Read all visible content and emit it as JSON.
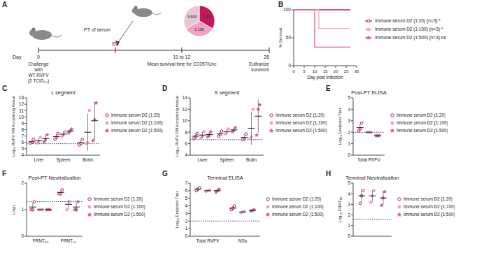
{
  "schematic": {
    "panel_label": "A",
    "pie_labels": [
      "1:20",
      "1:100",
      "1:500"
    ],
    "treatment": "PT of serum",
    "treatment_day": "D2",
    "timeline_label": "Day",
    "timeline_ticks": [
      "0",
      "11 to 12",
      "28"
    ],
    "events": [
      [
        "Challenge",
        "with",
        "WT RVFV",
        "(2 TCID₅₀)"
      ],
      [
        "Mean survival time for CC057/Unc"
      ],
      [
        "Euthanize",
        "survivors"
      ]
    ]
  },
  "chart_data": [
    {
      "type": "line",
      "panel_label": "B",
      "x_label": "Day post infection",
      "y_label": "% Survival",
      "xlim": [
        0,
        30
      ],
      "xticks": [
        0,
        5,
        10,
        15,
        20,
        25,
        30
      ],
      "ylim": [
        0,
        100
      ],
      "yticks": [
        0,
        50,
        100
      ],
      "series": [
        {
          "name": "Immune serum D2 (1:20) (n=3) *",
          "color": "#c2185b",
          "marker": "open-circle",
          "x": [
            0,
            27
          ],
          "values": [
            100,
            100
          ]
        },
        {
          "name": "Immune serum D2 (1:100) (n=3) *",
          "color": "#f3a3c3",
          "marker": "circle",
          "x": [
            0,
            12,
            12,
            27
          ],
          "values": [
            100,
            100,
            66.7,
            66.7
          ]
        },
        {
          "name": "Immune serum D2 (1:500) (n=3) ns",
          "color": "#de5b95",
          "marker": "star",
          "x": [
            0,
            10,
            10,
            27
          ],
          "values": [
            100,
            100,
            33.3,
            33.3
          ]
        }
      ]
    },
    {
      "type": "dot",
      "panel_label": "C",
      "title": "L segment",
      "y_label": "Log₁₀ RVFV RNA copies/g tissue",
      "ylim": [
        4,
        13
      ],
      "yticks": [
        4,
        5,
        6,
        7,
        8,
        9,
        10,
        11,
        12,
        13
      ],
      "limit_of_detection": 5.8,
      "categories": [
        "Liver",
        "Spleen",
        "Brain"
      ],
      "series": [
        {
          "name": "Immune serum D2 (1:20)",
          "color": "#c2185b",
          "marker": "open-circle",
          "values": [
            6.1,
            6.9,
            6.0
          ],
          "errors": [
            0.3,
            0.45,
            0.45
          ],
          "points": [
            [
              5.9,
              6.0,
              6.5
            ],
            [
              6.5,
              6.8,
              7.4
            ],
            [
              5.6,
              5.8,
              6.5
            ]
          ]
        },
        {
          "name": "Immune serum D2 (1:100)",
          "color": "#f3a3c3",
          "marker": "circle",
          "values": [
            6.3,
            7.3,
            7.6
          ],
          "errors": [
            0.45,
            0.4,
            2.9
          ],
          "points": [
            [
              5.9,
              6.2,
              6.8
            ],
            [
              6.9,
              7.2,
              7.7
            ],
            [
              5.8,
              6.0,
              11.0
            ]
          ]
        },
        {
          "name": "Immune serum D2 (1:500)",
          "color": "#de5b95",
          "marker": "star",
          "values": [
            6.6,
            7.8,
            9.4
          ],
          "errors": [
            0.55,
            0.3,
            3.0
          ],
          "points": [
            [
              6.1,
              6.5,
              7.2
            ],
            [
              7.5,
              7.8,
              8.1
            ],
            [
              6.3,
              9.6,
              12.2
            ]
          ]
        }
      ]
    },
    {
      "type": "dot",
      "panel_label": "D",
      "title": "S segment",
      "y_label": "Log₁₀ RVFV RNA copies/g tissue",
      "ylim": [
        4,
        14
      ],
      "yticks": [
        4,
        6,
        8,
        10,
        12,
        14
      ],
      "limit_of_detection": 6.7,
      "categories": [
        "Liver",
        "Spleen",
        "Brain"
      ],
      "series": [
        {
          "name": "Immune serum D2 (1:20)",
          "color": "#c2185b",
          "marker": "open-circle",
          "values": [
            7.3,
            7.7,
            7.1
          ],
          "errors": [
            0.45,
            0.45,
            0.5
          ],
          "points": [
            [
              6.9,
              7.2,
              7.8
            ],
            [
              7.3,
              7.6,
              8.2
            ],
            [
              6.7,
              6.9,
              7.7
            ]
          ]
        },
        {
          "name": "Immune serum D2 (1:100)",
          "color": "#f3a3c3",
          "marker": "circle",
          "values": [
            7.5,
            8.1,
            8.7
          ],
          "errors": [
            0.55,
            0.45,
            2.9
          ],
          "points": [
            [
              7.0,
              7.4,
              8.1
            ],
            [
              7.7,
              8.0,
              8.6
            ],
            [
              6.8,
              7.2,
              12.0
            ]
          ]
        },
        {
          "name": "Immune serum D2 (1:500)",
          "color": "#de5b95",
          "marker": "star",
          "values": [
            7.6,
            8.4,
            10.8
          ],
          "errors": [
            0.45,
            0.35,
            2.9
          ],
          "points": [
            [
              7.2,
              7.5,
              8.1
            ],
            [
              8.1,
              8.3,
              8.8
            ],
            [
              7.5,
              12.0,
              12.8
            ]
          ]
        }
      ]
    },
    {
      "type": "dot",
      "panel_label": "E",
      "title": "Post-PT ELISA",
      "y_label": "Log₁₀ Endpoint Titer",
      "ylim": [
        0,
        5
      ],
      "yticks": [
        0,
        1,
        2,
        3,
        4,
        5
      ],
      "limit_of_detection": 2,
      "categories": [
        "Total RVFV"
      ],
      "series": [
        {
          "name": "Immune serum D2 (1:20)",
          "color": "#c2185b",
          "marker": "open-circle",
          "values": [
            2.4
          ],
          "errors": [
            0.35
          ],
          "points": [
            [
              2.1,
              2.3,
              2.8
            ]
          ]
        },
        {
          "name": "Immune serum D2 (1:100)",
          "color": "#f3a3c3",
          "marker": "circle",
          "values": [
            2.0
          ],
          "errors": [
            0
          ],
          "points": [
            [
              2.0,
              2.0,
              2.0
            ]
          ]
        },
        {
          "name": "Immune serum D2 (1:500)",
          "color": "#de5b95",
          "marker": "star",
          "values": [
            1.7
          ],
          "errors": [
            0
          ],
          "points": [
            [
              1.7,
              1.7,
              1.7
            ]
          ]
        }
      ]
    },
    {
      "type": "dot",
      "panel_label": "F",
      "title": "Post-PT Neutralization",
      "y_label": "Log₁₀",
      "ylim": [
        0,
        2
      ],
      "yticks": [
        0,
        1,
        2
      ],
      "limit_of_detection": 1.3,
      "categories": [
        "FRNT₈₀",
        "FRNT₅₀"
      ],
      "series": [
        {
          "name": "Immune serum D2 (1:20)",
          "color": "#c2185b",
          "marker": "open-circle",
          "values": [
            1.1,
            1.65
          ],
          "errors": [
            0.17,
            0.09
          ],
          "points": [
            [
              1.0,
              1.0,
              1.3
            ],
            [
              1.6,
              1.6,
              1.75
            ]
          ]
        },
        {
          "name": "Immune serum D2 (1:100)",
          "color": "#f3a3c3",
          "marker": "circle",
          "values": [
            1.0,
            1.2
          ],
          "errors": [
            0,
            0.17
          ],
          "points": [
            [
              1.0,
              1.0,
              1.0
            ],
            [
              1.0,
              1.3,
              1.3
            ]
          ]
        },
        {
          "name": "Immune serum D2 (1:500)",
          "color": "#de5b95",
          "marker": "star",
          "values": [
            1.0,
            1.1
          ],
          "errors": [
            0,
            0.17
          ],
          "points": [
            [
              1.0,
              1.0,
              1.0
            ],
            [
              1.0,
              1.0,
              1.3
            ]
          ]
        }
      ]
    },
    {
      "type": "dot",
      "panel_label": "G",
      "title": "Terminal ELISA",
      "y_label": "Log₁₀ Endpoint Titer",
      "ylim": [
        0,
        7
      ],
      "yticks": [
        0,
        1,
        2,
        3,
        4,
        5,
        6,
        7
      ],
      "limit_of_detection": 2,
      "categories": [
        "Total RVFV",
        "NSs"
      ],
      "series": [
        {
          "name": "Immune serum D2 (1:20)",
          "color": "#c2185b",
          "marker": "open-circle",
          "values": [
            6.2,
            3.7
          ],
          "errors": [
            0.2,
            0.25
          ],
          "points": [
            [
              6.0,
              6.2,
              6.4
            ],
            [
              3.5,
              3.7,
              4.0
            ]
          ]
        },
        {
          "name": "Immune serum D2 (1:100)",
          "color": "#f3a3c3",
          "marker": "circle",
          "values": [
            6.0,
            3.2
          ],
          "errors": [
            0.1,
            0.1
          ],
          "points": [
            [
              5.9,
              6.0,
              6.1
            ],
            [
              3.1,
              3.2,
              3.3
            ]
          ]
        },
        {
          "name": "Immune serum D2 (1:500)",
          "color": "#de5b95",
          "marker": "star",
          "values": [
            6.0,
            3.4
          ],
          "errors": [
            0.2,
            0.1
          ],
          "points": [
            [
              5.8,
              6.0,
              6.2
            ],
            [
              3.3,
              3.4,
              3.5
            ]
          ]
        }
      ]
    },
    {
      "type": "dot",
      "panel_label": "H",
      "title": "Terminal Neutralization",
      "y_label": "Log₁₀ FRNT₈₀",
      "ylim": [
        0,
        5
      ],
      "yticks": [
        0,
        1,
        2,
        3,
        4,
        5
      ],
      "limit_of_detection": 1.6,
      "categories": [
        null
      ],
      "series": [
        {
          "name": "Immune serum D2 (1:20)",
          "color": "#c2185b",
          "marker": "open-circle",
          "values": [
            3.8
          ],
          "errors": [
            0.6
          ],
          "points": [
            [
              3.1,
              3.8,
              4.3
            ]
          ]
        },
        {
          "name": "Immune serum D2 (1:100)",
          "color": "#f3a3c3",
          "marker": "circle",
          "values": [
            3.8
          ],
          "errors": [
            0.55
          ],
          "points": [
            [
              3.2,
              3.8,
              4.3
            ]
          ]
        },
        {
          "name": "Immune serum D2 (1:500)",
          "color": "#de5b95",
          "marker": "star",
          "values": [
            3.6
          ],
          "errors": [
            0.65
          ],
          "points": [
            [
              2.9,
              3.6,
              4.2
            ]
          ]
        }
      ]
    }
  ]
}
